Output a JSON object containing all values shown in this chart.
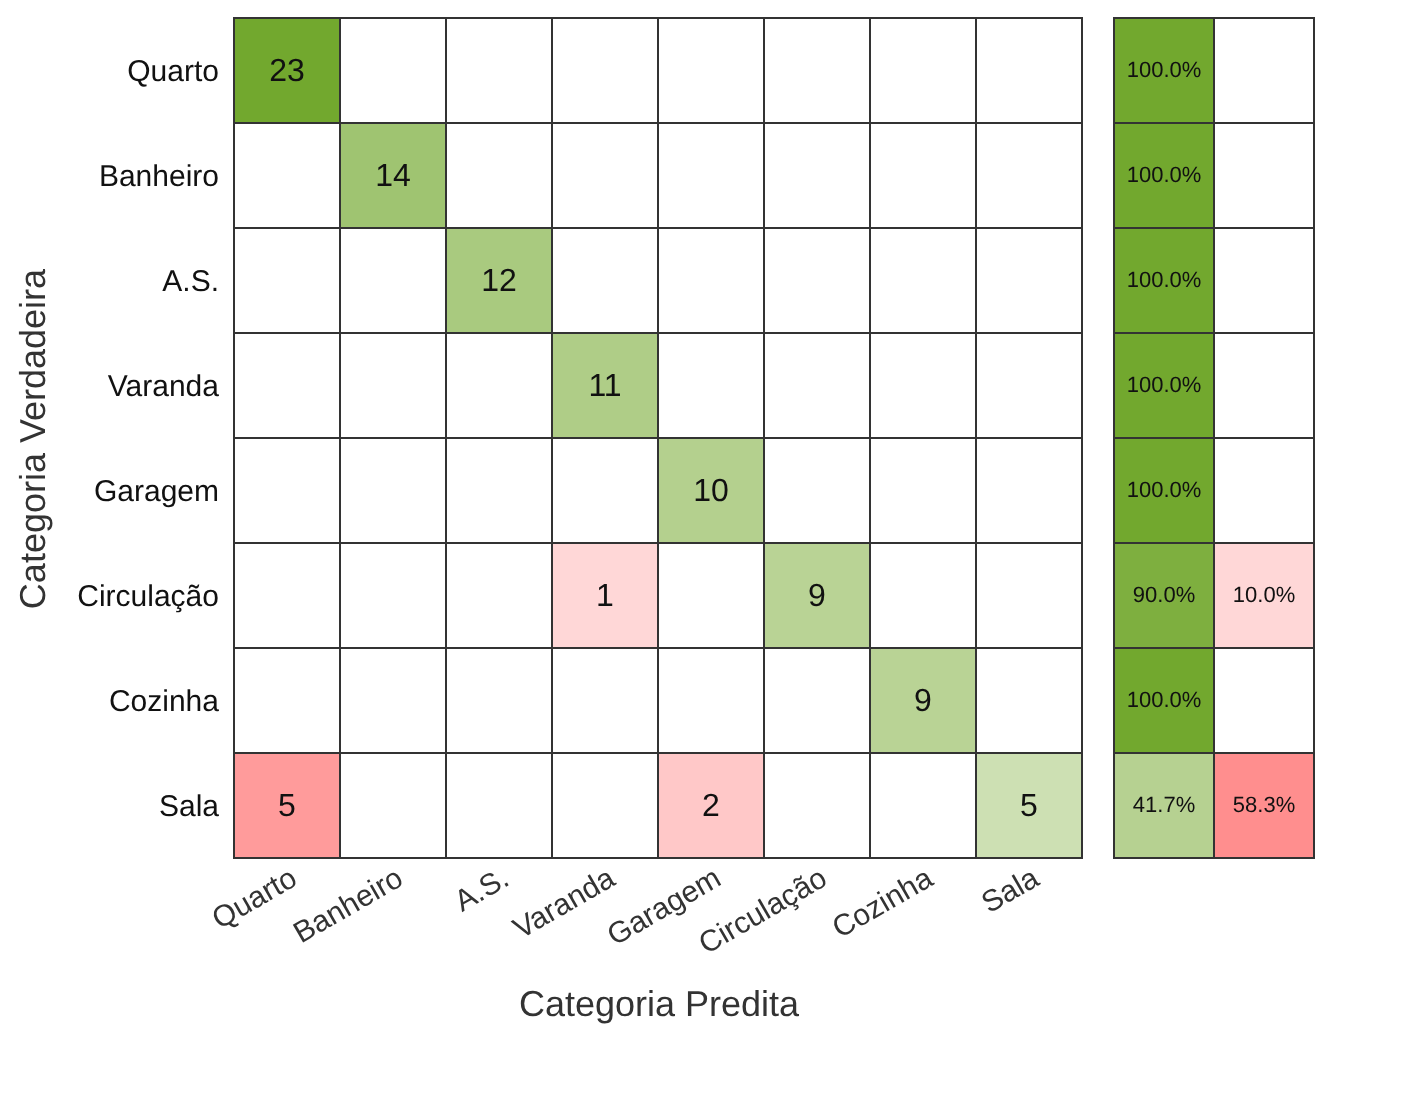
{
  "chart_data": [
    {
      "type": "heatmap",
      "data_labels": true,
      "xlabel": "Categoria Predita",
      "ylabel": "Categoria Verdadeira",
      "categories": [
        "Quarto",
        "Banheiro",
        "A.S.",
        "Varanda",
        "Garagem",
        "Circulação",
        "Cozinha",
        "Sala"
      ],
      "y_categories": [
        "Quarto",
        "Banheiro",
        "A.S.",
        "Varanda",
        "Garagem",
        "Circulação",
        "Cozinha",
        "Sala"
      ],
      "cells": [
        [
          23,
          null,
          null,
          null,
          null,
          null,
          null,
          null
        ],
        [
          null,
          14,
          null,
          null,
          null,
          null,
          null,
          null
        ],
        [
          null,
          null,
          12,
          null,
          null,
          null,
          null,
          null
        ],
        [
          null,
          null,
          null,
          11,
          null,
          null,
          null,
          null
        ],
        [
          null,
          null,
          null,
          null,
          10,
          null,
          null,
          null
        ],
        [
          null,
          null,
          null,
          1,
          null,
          9,
          null,
          null
        ],
        [
          null,
          null,
          null,
          null,
          null,
          null,
          9,
          null
        ],
        [
          5,
          null,
          null,
          null,
          2,
          null,
          null,
          5
        ]
      ]
    },
    {
      "type": "heatmap",
      "tick_labels": false,
      "categories": [
        null,
        null
      ],
      "y_categories": [
        "Quarto",
        "Banheiro",
        "A.S.",
        "Varanda",
        "Garagem",
        "Circulação",
        "Cozinha",
        "Sala"
      ],
      "cells": [
        [
          100.0,
          null
        ],
        [
          100.0,
          null
        ],
        [
          100.0,
          null
        ],
        [
          100.0,
          null
        ],
        [
          100.0,
          null
        ],
        [
          90.0,
          10.0
        ],
        [
          100.0,
          null
        ],
        [
          41.7,
          58.3
        ]
      ],
      "cell_labels": [
        [
          "100.0%",
          null
        ],
        [
          "100.0%",
          null
        ],
        [
          "100.0%",
          null
        ],
        [
          "100.0%",
          null
        ],
        [
          "100.0%",
          null
        ],
        [
          "90.0%",
          "10.0%"
        ],
        [
          "100.0%",
          null
        ],
        [
          "41.7%",
          "58.3%"
        ]
      ]
    }
  ]
}
